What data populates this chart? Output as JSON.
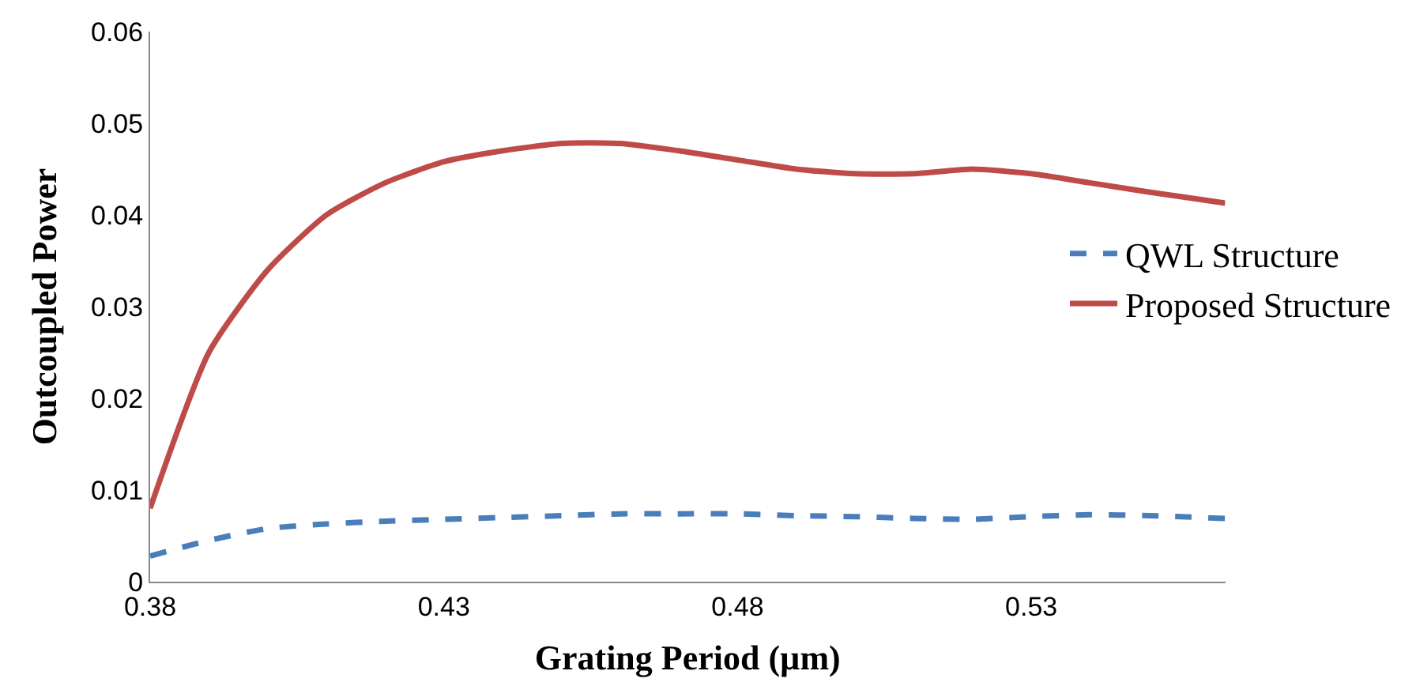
{
  "chart_data": {
    "type": "line",
    "xlabel": "Grating Period (µm)",
    "ylabel": "Outcoupled Power",
    "x": [
      0.38,
      0.39,
      0.4,
      0.41,
      0.42,
      0.43,
      0.44,
      0.45,
      0.46,
      0.47,
      0.48,
      0.49,
      0.5,
      0.51,
      0.52,
      0.53,
      0.54,
      0.55,
      0.563
    ],
    "series": [
      {
        "name": "QWL Structure",
        "color": "#4a7ebb",
        "line_style": "dashed",
        "values": [
          0.0028,
          0.0045,
          0.0058,
          0.0063,
          0.0066,
          0.0068,
          0.007,
          0.0072,
          0.0074,
          0.0074,
          0.0074,
          0.0072,
          0.0071,
          0.0069,
          0.0068,
          0.0071,
          0.0073,
          0.0072,
          0.0069
        ]
      },
      {
        "name": "Proposed Structure",
        "color": "#be4b48",
        "line_style": "solid",
        "values": [
          0.008,
          0.025,
          0.034,
          0.04,
          0.0435,
          0.0458,
          0.047,
          0.0478,
          0.0478,
          0.047,
          0.046,
          0.045,
          0.0445,
          0.0445,
          0.045,
          0.0445,
          0.0435,
          0.0425,
          0.0413
        ]
      }
    ],
    "xlim": [
      0.38,
      0.563
    ],
    "xticks": [
      0.38,
      0.43,
      0.48,
      0.53
    ],
    "ylim": [
      0,
      0.06
    ],
    "yticks": [
      0,
      0.01,
      0.02,
      0.03,
      0.04,
      0.05,
      0.06
    ],
    "grid": false,
    "legend": "right",
    "marker": "none"
  }
}
